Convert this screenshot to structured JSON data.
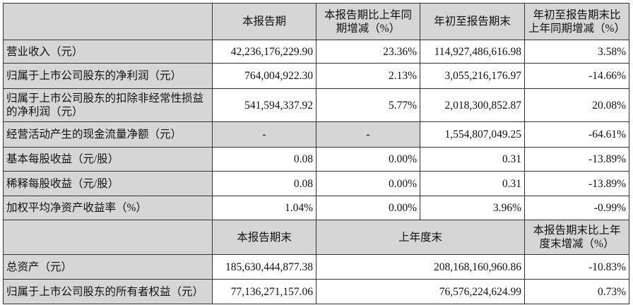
{
  "header": [
    "",
    "本报告期",
    "本报告期比上年同期增减（%）",
    "年初至报告期末",
    "年初至报告期末比上年同期增减（%）"
  ],
  "rows": [
    {
      "label": "营业收入（元）",
      "values": [
        "42,236,176,229.90",
        "23.36%",
        "114,927,486,616.98",
        "3.58%"
      ]
    },
    {
      "label": "归属于上市公司股东的净利润（元）",
      "values": [
        "764,004,922.30",
        "2.13%",
        "3,055,216,176.97",
        "-14.66%"
      ]
    },
    {
      "label": "归属于上市公司股东的扣除非经常性损益的净利润（元）",
      "values": [
        "541,594,337.92",
        "5.77%",
        "2,018,300,852.87",
        "20.08%"
      ]
    },
    {
      "label": "经营活动产生的现金流量净额（元）",
      "values": [
        "-",
        "-",
        "1,554,807,049.25",
        "-64.61%"
      ]
    },
    {
      "label": "基本每股收益（元/股）",
      "values": [
        "0.08",
        "0.00%",
        "0.31",
        "-13.89%"
      ]
    },
    {
      "label": "稀释每股收益（元/股）",
      "values": [
        "0.08",
        "0.00%",
        "0.31",
        "-13.89%"
      ]
    },
    {
      "label": "加权平均净资产收益率（%）",
      "values": [
        "1.04%",
        "0.00%",
        "3.96%",
        "-0.99%"
      ]
    }
  ],
  "header2": [
    "",
    "本报告期末",
    "上年度末",
    "本报告期末比上年度末增减（%）"
  ],
  "rows2": [
    {
      "label": "总资产（元）",
      "values": [
        "185,630,444,877.38",
        "208,168,160,960.86",
        "-10.83%"
      ]
    },
    {
      "label": "归属于上市公司股东的所有者权益（元）",
      "values": [
        "77,136,271,157.06",
        "76,576,224,624.99",
        "0.73%"
      ]
    }
  ]
}
